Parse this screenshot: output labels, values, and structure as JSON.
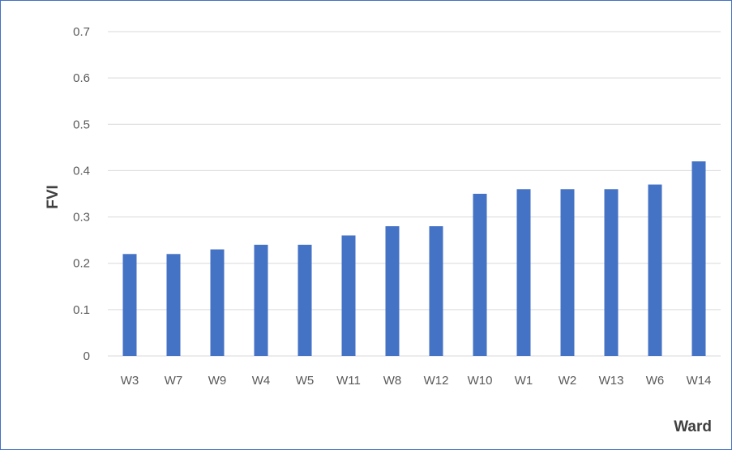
{
  "chart_data": {
    "type": "bar",
    "categories": [
      "W3",
      "W7",
      "W9",
      "W4",
      "W5",
      "W11",
      "W8",
      "W12",
      "W10",
      "W1",
      "W2",
      "W13",
      "W6",
      "W14"
    ],
    "values": [
      0.22,
      0.22,
      0.23,
      0.24,
      0.24,
      0.26,
      0.28,
      0.28,
      0.35,
      0.36,
      0.36,
      0.36,
      0.37,
      0.42
    ],
    "yticks": [
      "0",
      "0.1",
      "0.2",
      "0.3",
      "0.4",
      "0.5",
      "0.6",
      "0.7"
    ],
    "title": "",
    "xlabel": "Ward",
    "ylabel": "FVI",
    "ylim": [
      0,
      0.7
    ],
    "grid": true,
    "bar_color": "#4472c4",
    "grid_color": "#d9d9d9",
    "legend": "none"
  }
}
